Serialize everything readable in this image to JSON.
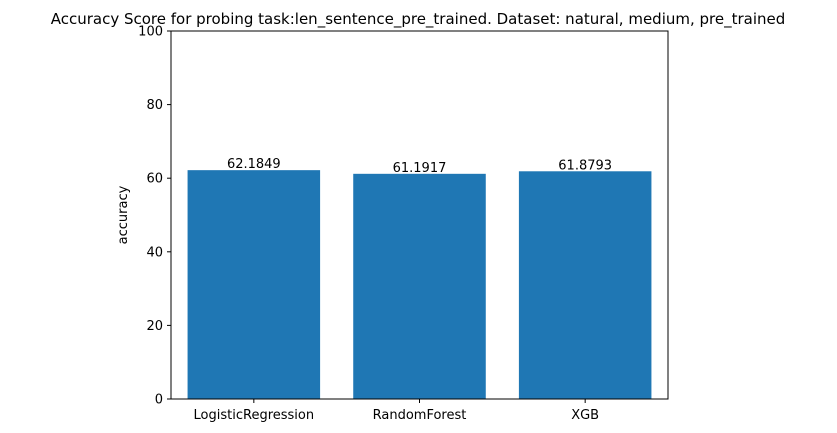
{
  "chart_data": {
    "type": "bar",
    "title": "Accuracy Score for probing task:len_sentence_pre_trained. Dataset: natural, medium, pre_trained",
    "xlabel": "",
    "ylabel": "accuracy",
    "categories": [
      "LogisticRegression",
      "RandomForest",
      "XGB"
    ],
    "values": [
      62.1849,
      61.1917,
      61.8793
    ],
    "data_labels": [
      "62.1849",
      "61.1917",
      "61.8793"
    ],
    "ylim": [
      0,
      100
    ],
    "yticks": [
      0,
      20,
      40,
      60,
      80,
      100
    ],
    "grid": false,
    "legend": "none",
    "bar_color": "#1f77b4"
  }
}
